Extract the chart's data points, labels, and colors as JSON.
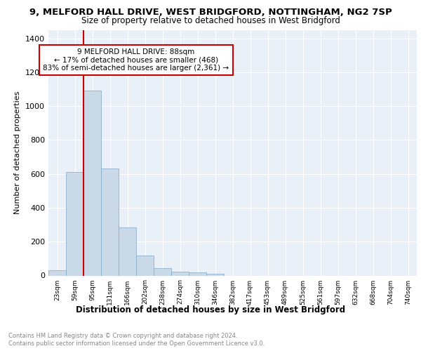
{
  "title": "9, MELFORD HALL DRIVE, WEST BRIDGFORD, NOTTINGHAM, NG2 7SP",
  "subtitle": "Size of property relative to detached houses in West Bridgford",
  "xlabel": "Distribution of detached houses by size in West Bridgford",
  "ylabel": "Number of detached properties",
  "bin_labels": [
    "23sqm",
    "59sqm",
    "95sqm",
    "131sqm",
    "166sqm",
    "202sqm",
    "238sqm",
    "274sqm",
    "310sqm",
    "346sqm",
    "382sqm",
    "417sqm",
    "453sqm",
    "489sqm",
    "525sqm",
    "561sqm",
    "597sqm",
    "632sqm",
    "668sqm",
    "704sqm",
    "740sqm"
  ],
  "bin_values": [
    30,
    610,
    1090,
    630,
    285,
    118,
    45,
    22,
    20,
    12,
    0,
    0,
    0,
    0,
    0,
    0,
    0,
    0,
    0,
    0,
    0
  ],
  "bar_color": "#c9d9e8",
  "bar_edge_color": "#7fa8c8",
  "vline_color": "#cc0000",
  "annotation_text": "9 MELFORD HALL DRIVE: 88sqm\n← 17% of detached houses are smaller (468)\n83% of semi-detached houses are larger (2,361) →",
  "annotation_box_color": "#ffffff",
  "annotation_box_edge": "#cc0000",
  "ylim": [
    0,
    1450
  ],
  "yticks": [
    0,
    200,
    400,
    600,
    800,
    1000,
    1200,
    1400
  ],
  "footer_line1": "Contains HM Land Registry data © Crown copyright and database right 2024.",
  "footer_line2": "Contains public sector information licensed under the Open Government Licence v3.0.",
  "bg_color": "#eaf0f8"
}
